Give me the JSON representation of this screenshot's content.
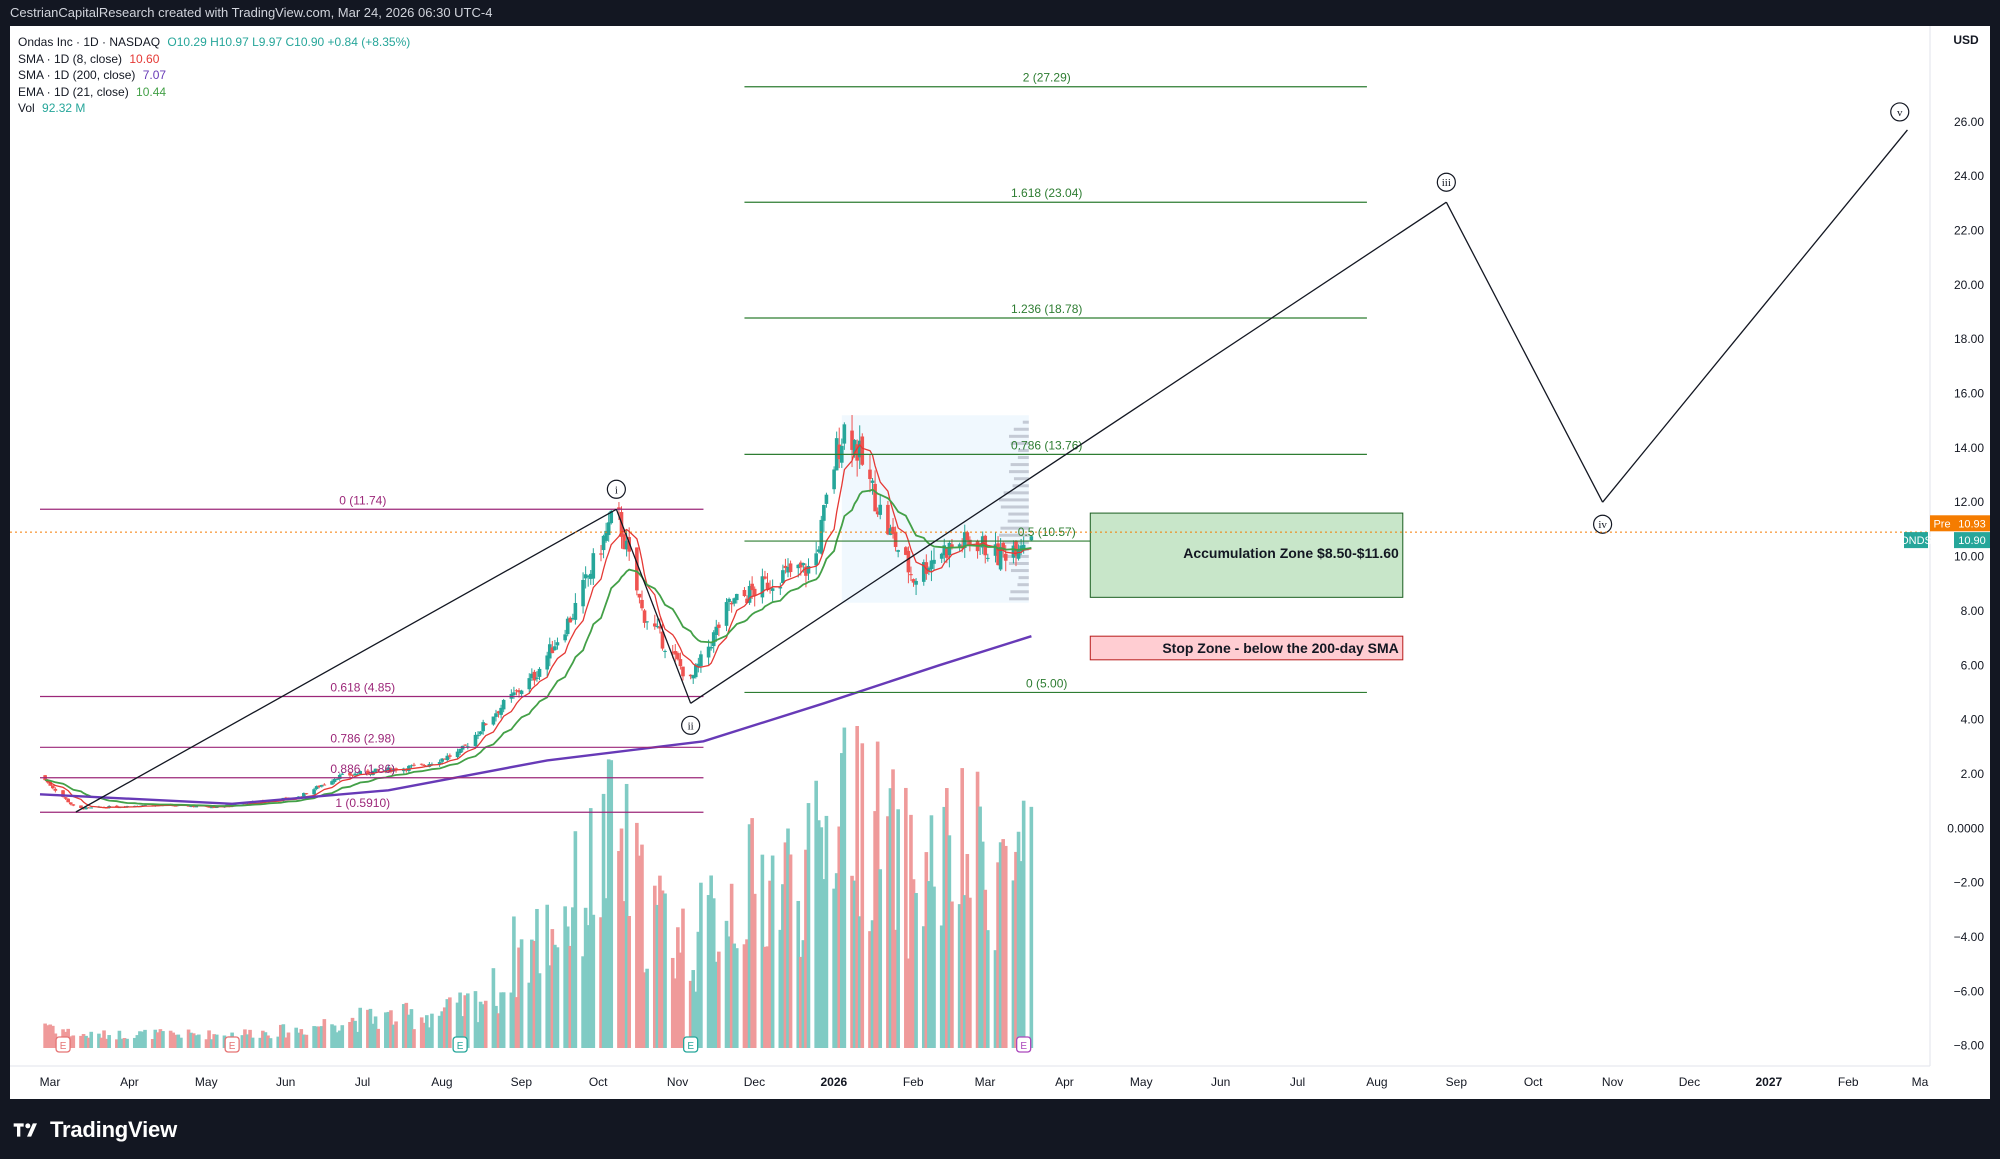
{
  "header": {
    "caption": "CestrianCapitalResearch created with TradingView.com, Mar 24, 2026 06:30 UTC-4"
  },
  "legend": {
    "symbol": "Ondas Inc · 1D · NASDAQ",
    "ohlc": "O10.29 H10.97 L9.97 C10.90 +0.84 (+8.35%)",
    "sma8": {
      "label": "SMA · 1D (8, close)",
      "value": "10.60",
      "color": "#e53935"
    },
    "sma200": {
      "label": "SMA · 1D (200, close)",
      "value": "7.07",
      "color": "#673ab7"
    },
    "ema21": {
      "label": "EMA · 1D (21, close)",
      "value": "10.44",
      "color": "#43a047"
    },
    "vol": {
      "label": "Vol",
      "value": "92.32 M",
      "color": "#26a69a"
    }
  },
  "footer": {
    "brand": "TradingView"
  },
  "chart_data": {
    "type": "candlestick",
    "currency": "USD",
    "x_axis_labels": [
      "Mar",
      "Apr",
      "May",
      "Jun",
      "Jul",
      "Aug",
      "Sep",
      "Oct",
      "Nov",
      "Dec",
      "2026",
      "Feb",
      "Mar",
      "Apr",
      "May",
      "Jun",
      "Jul",
      "Aug",
      "Sep",
      "Oct",
      "Nov",
      "Dec",
      "2027",
      "Feb",
      "Ma"
    ],
    "x_axis_range": [
      "2025-03-01",
      "2027-03-01"
    ],
    "y_axis_ticks": [
      "26.00",
      "24.00",
      "22.00",
      "20.00",
      "18.00",
      "16.00",
      "14.00",
      "12.00",
      "10.00",
      "8.00",
      "6.00",
      "4.00",
      "2.00",
      "0.0000",
      "−2.00",
      "−4.00",
      "−6.00",
      "−8.00"
    ],
    "ylim": [
      -8.6,
      28.2
    ],
    "price_path": [
      [
        "2025-03-01",
        1.95
      ],
      [
        "2025-03-15",
        0.72
      ],
      [
        "2025-04-10",
        0.85
      ],
      [
        "2025-05-10",
        0.8
      ],
      [
        "2025-06-10",
        1.15
      ],
      [
        "2025-06-25",
        1.9
      ],
      [
        "2025-07-10",
        2.1
      ],
      [
        "2025-07-28",
        2.3
      ],
      [
        "2025-08-12",
        2.8
      ],
      [
        "2025-08-25",
        4.2
      ],
      [
        "2025-09-10",
        5.6
      ],
      [
        "2025-09-25",
        7.9
      ],
      [
        "2025-10-06",
        10.4
      ],
      [
        "2025-10-12",
        11.74
      ],
      [
        "2025-10-22",
        8.0
      ],
      [
        "2025-11-10",
        5.4
      ],
      [
        "2025-11-25",
        8.2
      ],
      [
        "2025-12-15",
        9.3
      ],
      [
        "2025-12-28",
        9.6
      ],
      [
        "2026-01-06",
        13.9
      ],
      [
        "2026-01-10",
        15.0
      ],
      [
        "2026-01-16",
        13.4
      ],
      [
        "2026-01-25",
        11.2
      ],
      [
        "2026-02-05",
        9.2
      ],
      [
        "2026-02-15",
        10.2
      ],
      [
        "2026-03-01",
        10.6
      ],
      [
        "2026-03-10",
        10.0
      ],
      [
        "2026-03-23",
        10.9
      ]
    ],
    "series": [
      {
        "name": "SMA · 1D (8, close)",
        "color": "#e53935",
        "last": 10.6
      },
      {
        "name": "SMA · 1D (200, close)",
        "color": "#673ab7",
        "last": 7.07,
        "points": [
          [
            "2025-03-01",
            1.25
          ],
          [
            "2025-05-15",
            0.9
          ],
          [
            "2025-07-15",
            1.4
          ],
          [
            "2025-09-15",
            2.5
          ],
          [
            "2025-11-15",
            3.2
          ],
          [
            "2026-01-01",
            4.6
          ],
          [
            "2026-02-15",
            6.0
          ],
          [
            "2026-03-23",
            7.07
          ]
        ]
      },
      {
        "name": "EMA · 1D (21, close)",
        "color": "#43a047",
        "last": 10.44
      },
      {
        "name": "Vol",
        "color": "#26a69a",
        "last_label": "92.32 M"
      }
    ],
    "fib_retracement_left": [
      {
        "label": "0 (11.74)",
        "value": 11.74
      },
      {
        "label": "0.618 (4.85)",
        "value": 4.85
      },
      {
        "label": "0.786 (2.98)",
        "value": 2.98
      },
      {
        "label": "0.886 (1.86)",
        "value": 1.86
      },
      {
        "label": "1 (0.5910)",
        "value": 0.591
      }
    ],
    "fib_extension_right": [
      {
        "label": "2 (27.29)",
        "value": 27.29
      },
      {
        "label": "1.618 (23.04)",
        "value": 23.04
      },
      {
        "label": "1.236 (18.78)",
        "value": 18.78
      },
      {
        "label": "0.786 (13.76)",
        "value": 13.76
      },
      {
        "label": "0.5 (10.57)",
        "value": 10.57
      },
      {
        "label": "0 (5.00)",
        "value": 5.0
      }
    ],
    "wave_labels": [
      {
        "label": "i",
        "date": "2025-10-12",
        "price": 11.74
      },
      {
        "label": "ii",
        "date": "2025-11-10",
        "price": 4.6
      },
      {
        "label": "iii",
        "date": "2026-09-01",
        "price": 23.04
      },
      {
        "label": "iv",
        "date": "2026-11-01",
        "price": 12.0
      },
      {
        "label": "v",
        "date": "2027-02-25",
        "price": 25.7
      }
    ],
    "zones": [
      {
        "label": "Accumulation Zone $8.50-$11.60",
        "low": 8.5,
        "high": 11.6,
        "from": "2026-04-15",
        "to": "2026-08-15",
        "color": "#c8e6c9"
      },
      {
        "label": "Stop Zone - below the 200-day SMA",
        "low": 6.2,
        "high": 7.07,
        "from": "2026-04-15",
        "to": "2026-08-15",
        "color": "#ffcdd2"
      }
    ],
    "price_tags": [
      {
        "label": "Pre",
        "value": "10.93",
        "color": "#f57c00"
      },
      {
        "label": "ONDS",
        "value": "10.90",
        "color": "#26a69a"
      }
    ],
    "event_markers": [
      {
        "date": "2025-03-10",
        "label": "E",
        "color": "#e57373"
      },
      {
        "date": "2025-05-15",
        "label": "E",
        "color": "#e57373"
      },
      {
        "date": "2025-08-12",
        "label": "E",
        "color": "#26a69a"
      },
      {
        "date": "2025-11-10",
        "label": "E",
        "color": "#26a69a"
      },
      {
        "date": "2026-03-20",
        "label": "E",
        "color": "#ab47bc"
      }
    ]
  }
}
